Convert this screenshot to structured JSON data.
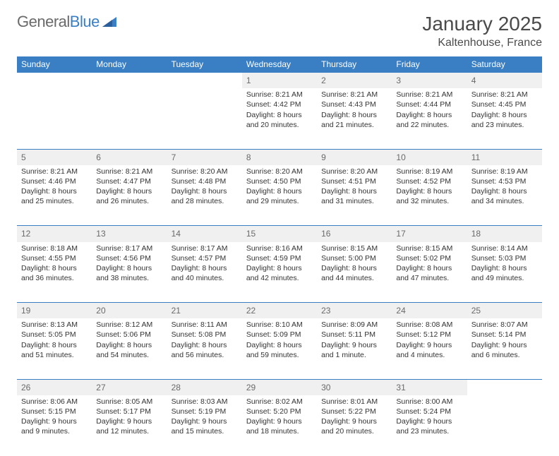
{
  "logo": {
    "general": "General",
    "blue": "Blue"
  },
  "title": "January 2025",
  "location": "Kaltenhouse, France",
  "colors": {
    "header_bg": "#3a7fc4",
    "header_text": "#ffffff",
    "daynum_bg": "#f0f0f0",
    "border": "#3a7fc4",
    "text": "#333333",
    "logo_gray": "#6a6a6a",
    "logo_blue": "#3a7fc4"
  },
  "day_headers": [
    "Sunday",
    "Monday",
    "Tuesday",
    "Wednesday",
    "Thursday",
    "Friday",
    "Saturday"
  ],
  "weeks": [
    {
      "nums": [
        "",
        "",
        "",
        "1",
        "2",
        "3",
        "4"
      ],
      "cells": [
        "",
        "",
        "",
        "Sunrise: 8:21 AM\nSunset: 4:42 PM\nDaylight: 8 hours and 20 minutes.",
        "Sunrise: 8:21 AM\nSunset: 4:43 PM\nDaylight: 8 hours and 21 minutes.",
        "Sunrise: 8:21 AM\nSunset: 4:44 PM\nDaylight: 8 hours and 22 minutes.",
        "Sunrise: 8:21 AM\nSunset: 4:45 PM\nDaylight: 8 hours and 23 minutes."
      ]
    },
    {
      "nums": [
        "5",
        "6",
        "7",
        "8",
        "9",
        "10",
        "11"
      ],
      "cells": [
        "Sunrise: 8:21 AM\nSunset: 4:46 PM\nDaylight: 8 hours and 25 minutes.",
        "Sunrise: 8:21 AM\nSunset: 4:47 PM\nDaylight: 8 hours and 26 minutes.",
        "Sunrise: 8:20 AM\nSunset: 4:48 PM\nDaylight: 8 hours and 28 minutes.",
        "Sunrise: 8:20 AM\nSunset: 4:50 PM\nDaylight: 8 hours and 29 minutes.",
        "Sunrise: 8:20 AM\nSunset: 4:51 PM\nDaylight: 8 hours and 31 minutes.",
        "Sunrise: 8:19 AM\nSunset: 4:52 PM\nDaylight: 8 hours and 32 minutes.",
        "Sunrise: 8:19 AM\nSunset: 4:53 PM\nDaylight: 8 hours and 34 minutes."
      ]
    },
    {
      "nums": [
        "12",
        "13",
        "14",
        "15",
        "16",
        "17",
        "18"
      ],
      "cells": [
        "Sunrise: 8:18 AM\nSunset: 4:55 PM\nDaylight: 8 hours and 36 minutes.",
        "Sunrise: 8:17 AM\nSunset: 4:56 PM\nDaylight: 8 hours and 38 minutes.",
        "Sunrise: 8:17 AM\nSunset: 4:57 PM\nDaylight: 8 hours and 40 minutes.",
        "Sunrise: 8:16 AM\nSunset: 4:59 PM\nDaylight: 8 hours and 42 minutes.",
        "Sunrise: 8:15 AM\nSunset: 5:00 PM\nDaylight: 8 hours and 44 minutes.",
        "Sunrise: 8:15 AM\nSunset: 5:02 PM\nDaylight: 8 hours and 47 minutes.",
        "Sunrise: 8:14 AM\nSunset: 5:03 PM\nDaylight: 8 hours and 49 minutes."
      ]
    },
    {
      "nums": [
        "19",
        "20",
        "21",
        "22",
        "23",
        "24",
        "25"
      ],
      "cells": [
        "Sunrise: 8:13 AM\nSunset: 5:05 PM\nDaylight: 8 hours and 51 minutes.",
        "Sunrise: 8:12 AM\nSunset: 5:06 PM\nDaylight: 8 hours and 54 minutes.",
        "Sunrise: 8:11 AM\nSunset: 5:08 PM\nDaylight: 8 hours and 56 minutes.",
        "Sunrise: 8:10 AM\nSunset: 5:09 PM\nDaylight: 8 hours and 59 minutes.",
        "Sunrise: 8:09 AM\nSunset: 5:11 PM\nDaylight: 9 hours and 1 minute.",
        "Sunrise: 8:08 AM\nSunset: 5:12 PM\nDaylight: 9 hours and 4 minutes.",
        "Sunrise: 8:07 AM\nSunset: 5:14 PM\nDaylight: 9 hours and 6 minutes."
      ]
    },
    {
      "nums": [
        "26",
        "27",
        "28",
        "29",
        "30",
        "31",
        ""
      ],
      "cells": [
        "Sunrise: 8:06 AM\nSunset: 5:15 PM\nDaylight: 9 hours and 9 minutes.",
        "Sunrise: 8:05 AM\nSunset: 5:17 PM\nDaylight: 9 hours and 12 minutes.",
        "Sunrise: 8:03 AM\nSunset: 5:19 PM\nDaylight: 9 hours and 15 minutes.",
        "Sunrise: 8:02 AM\nSunset: 5:20 PM\nDaylight: 9 hours and 18 minutes.",
        "Sunrise: 8:01 AM\nSunset: 5:22 PM\nDaylight: 9 hours and 20 minutes.",
        "Sunrise: 8:00 AM\nSunset: 5:24 PM\nDaylight: 9 hours and 23 minutes.",
        ""
      ]
    }
  ]
}
